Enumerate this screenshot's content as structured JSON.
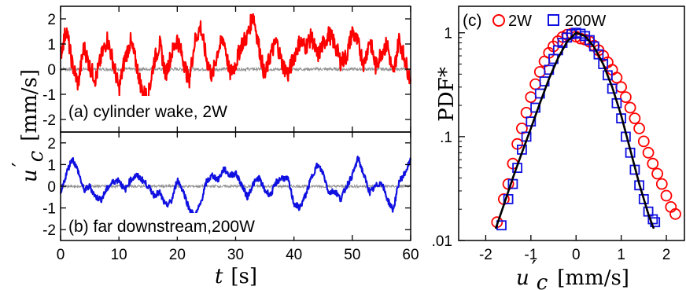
{
  "colors": {
    "wake": "#ff0000",
    "downstream": "#1010e0",
    "noise": "#909090",
    "fit": "#000000"
  },
  "chart_data": [
    {
      "type": "line",
      "panel": "(a)",
      "annotation": "(a) cylinder wake, 2W",
      "xlim": [
        0,
        60
      ],
      "ylim": [
        -2.5,
        2.5
      ],
      "yticks": [
        "2",
        "1",
        "0",
        "-1",
        "-2"
      ],
      "ytick_values": [
        2,
        1,
        0,
        -1,
        -2
      ],
      "series": [
        {
          "x": [
            0,
            1,
            2,
            3,
            4,
            5,
            6,
            7,
            8,
            9,
            10,
            11,
            12,
            13,
            14,
            15,
            16,
            17,
            18,
            19,
            20,
            21,
            22,
            23,
            24,
            25,
            26,
            27,
            28,
            29,
            30,
            31,
            32,
            33,
            34,
            35,
            36,
            37,
            38,
            39,
            40,
            41,
            42,
            43,
            44,
            45,
            46,
            47,
            48,
            49,
            50,
            51,
            52,
            53,
            54,
            55,
            56,
            57,
            58,
            59,
            60
          ],
          "values": [
            0.6,
            1.6,
            0.2,
            -0.6,
            0.9,
            0.1,
            -0.4,
            0.5,
            1.2,
            0.3,
            -0.8,
            0.4,
            1.1,
            0.2,
            -0.9,
            -1.1,
            0.3,
            1.0,
            -0.2,
            0.6,
            1.2,
            0.4,
            -0.5,
            1.1,
            1.7,
            0.4,
            -0.3,
            0.8,
            1.2,
            -0.2,
            0.2,
            1.0,
            1.3,
            2.2,
            0.9,
            -0.3,
            0.6,
            1.1,
            0.2,
            -0.2,
            0.5,
            1.1,
            0.9,
            1.3,
            0.5,
            1.0,
            1.4,
            1.0,
            0.3,
            0.5,
            1.5,
            1.0,
            0.2,
            1.2,
            0.1,
            0.7,
            1.0,
            -0.3,
            1.2,
            0.4,
            -0.5
          ]
        },
        {
          "x": [
            0,
            60
          ],
          "values": [
            0.0,
            0.0
          ]
        }
      ]
    },
    {
      "type": "line",
      "panel": "(b)",
      "annotation": "(b) far downstream,200W",
      "xlim": [
        0,
        60
      ],
      "ylim": [
        -2.5,
        2.5
      ],
      "xticks": [
        "0",
        "10",
        "20",
        "30",
        "40",
        "50",
        "60"
      ],
      "xtick_values": [
        0,
        10,
        20,
        30,
        40,
        50,
        60
      ],
      "yticks": [
        "2",
        "1",
        "0",
        "-1",
        "-2"
      ],
      "ytick_values": [
        2,
        1,
        0,
        -1,
        -2
      ],
      "xlabel_symbol": "t",
      "xlabel_unit": "[s]",
      "ylabel_symbol": "u",
      "ylabel_sub": "c",
      "ylabel_unit": "[mm/s]",
      "series": [
        {
          "x": [
            0,
            1,
            2,
            3,
            4,
            5,
            6,
            7,
            8,
            9,
            10,
            11,
            12,
            13,
            14,
            15,
            16,
            17,
            18,
            19,
            20,
            21,
            22,
            23,
            24,
            25,
            26,
            27,
            28,
            29,
            30,
            31,
            32,
            33,
            34,
            35,
            36,
            37,
            38,
            39,
            40,
            41,
            42,
            43,
            44,
            45,
            46,
            47,
            48,
            49,
            50,
            51,
            52,
            53,
            54,
            55,
            56,
            57,
            58,
            59,
            60
          ],
          "values": [
            -0.4,
            0.6,
            1.3,
            0.7,
            -0.2,
            0.0,
            -0.5,
            -0.6,
            -0.1,
            0.2,
            0.3,
            -0.2,
            0.3,
            0.5,
            0.3,
            0.0,
            -0.4,
            -0.3,
            -0.9,
            -0.7,
            0.3,
            -0.2,
            -1.0,
            -1.4,
            -0.8,
            0.2,
            0.5,
            0.3,
            0.8,
            0.5,
            0.6,
            0.1,
            -0.5,
            0.1,
            0.4,
            -0.2,
            -0.4,
            0.2,
            0.4,
            0.3,
            -0.8,
            -1.0,
            -0.4,
            0.4,
            1.0,
            0.6,
            -0.3,
            -0.2,
            -0.6,
            0.0,
            0.5,
            1.3,
            0.5,
            -0.3,
            0.0,
            0.2,
            -0.6,
            -1.1,
            0.2,
            0.6,
            1.2
          ]
        },
        {
          "x": [
            0,
            60
          ],
          "values": [
            0.0,
            0.0
          ]
        }
      ]
    },
    {
      "type": "scatter",
      "panel": "(c)",
      "annotation": "(c)",
      "yscale": "log",
      "xlim": [
        -2.6,
        2.4
      ],
      "ylim": [
        0.01,
        1.8
      ],
      "xticks": [
        "-2",
        "-1",
        "0",
        "1",
        "2"
      ],
      "xtick_values": [
        -2,
        -1,
        0,
        1,
        2
      ],
      "yticks": [
        "1",
        ".1",
        ".01"
      ],
      "ytick_values": [
        1,
        0.1,
        0.01
      ],
      "xlabel_symbol": "u",
      "xlabel_sub": "c",
      "xlabel_unit": "[mm/s]",
      "ylabel": "PDF*",
      "legend_position": "top",
      "series": [
        {
          "name": "2W",
          "marker": "circle",
          "x": [
            -1.75,
            -1.6,
            -1.5,
            -1.4,
            -1.3,
            -1.2,
            -1.1,
            -1.0,
            -0.9,
            -0.8,
            -0.7,
            -0.6,
            -0.5,
            -0.4,
            -0.3,
            -0.2,
            -0.1,
            0.0,
            0.1,
            0.2,
            0.3,
            0.4,
            0.5,
            0.6,
            0.7,
            0.8,
            0.9,
            1.0,
            1.1,
            1.2,
            1.3,
            1.4,
            1.5,
            1.6,
            1.7,
            1.8,
            1.9,
            2.0,
            2.1,
            2.2
          ],
          "values": [
            0.015,
            0.025,
            0.035,
            0.055,
            0.085,
            0.12,
            0.17,
            0.24,
            0.32,
            0.42,
            0.53,
            0.64,
            0.74,
            0.83,
            0.91,
            0.96,
            0.98,
            0.92,
            0.88,
            0.86,
            0.82,
            0.75,
            0.68,
            0.6,
            0.52,
            0.44,
            0.37,
            0.3,
            0.24,
            0.19,
            0.15,
            0.12,
            0.09,
            0.07,
            0.055,
            0.044,
            0.035,
            0.027,
            0.021,
            0.018
          ]
        },
        {
          "name": "200W",
          "marker": "square",
          "x": [
            -1.65,
            -1.5,
            -1.4,
            -1.3,
            -1.2,
            -1.1,
            -1.0,
            -0.9,
            -0.8,
            -0.7,
            -0.6,
            -0.5,
            -0.4,
            -0.3,
            -0.2,
            -0.1,
            0.0,
            0.1,
            0.2,
            0.3,
            0.4,
            0.5,
            0.6,
            0.7,
            0.8,
            0.9,
            1.0,
            1.1,
            1.2,
            1.3,
            1.4,
            1.5,
            1.6,
            1.7,
            1.75
          ],
          "values": [
            0.014,
            0.025,
            0.035,
            0.05,
            0.075,
            0.1,
            0.14,
            0.19,
            0.26,
            0.34,
            0.44,
            0.56,
            0.68,
            0.8,
            0.9,
            0.97,
            1.0,
            0.98,
            0.93,
            0.85,
            0.74,
            0.62,
            0.5,
            0.39,
            0.29,
            0.21,
            0.15,
            0.1,
            0.07,
            0.048,
            0.034,
            0.025,
            0.019,
            0.016,
            0.015
          ]
        },
        {
          "name": "",
          "marker": "line",
          "x": [
            -1.78,
            -1.6,
            -1.4,
            -1.2,
            -1.0,
            -0.8,
            -0.6,
            -0.4,
            -0.2,
            0.0,
            0.2,
            0.4,
            0.6,
            0.8,
            1.0,
            1.2,
            1.4,
            1.6,
            1.72
          ],
          "values": [
            0.013,
            0.022,
            0.04,
            0.07,
            0.12,
            0.21,
            0.36,
            0.57,
            0.82,
            1.0,
            0.93,
            0.73,
            0.5,
            0.3,
            0.16,
            0.075,
            0.035,
            0.018,
            0.013
          ]
        }
      ]
    }
  ]
}
